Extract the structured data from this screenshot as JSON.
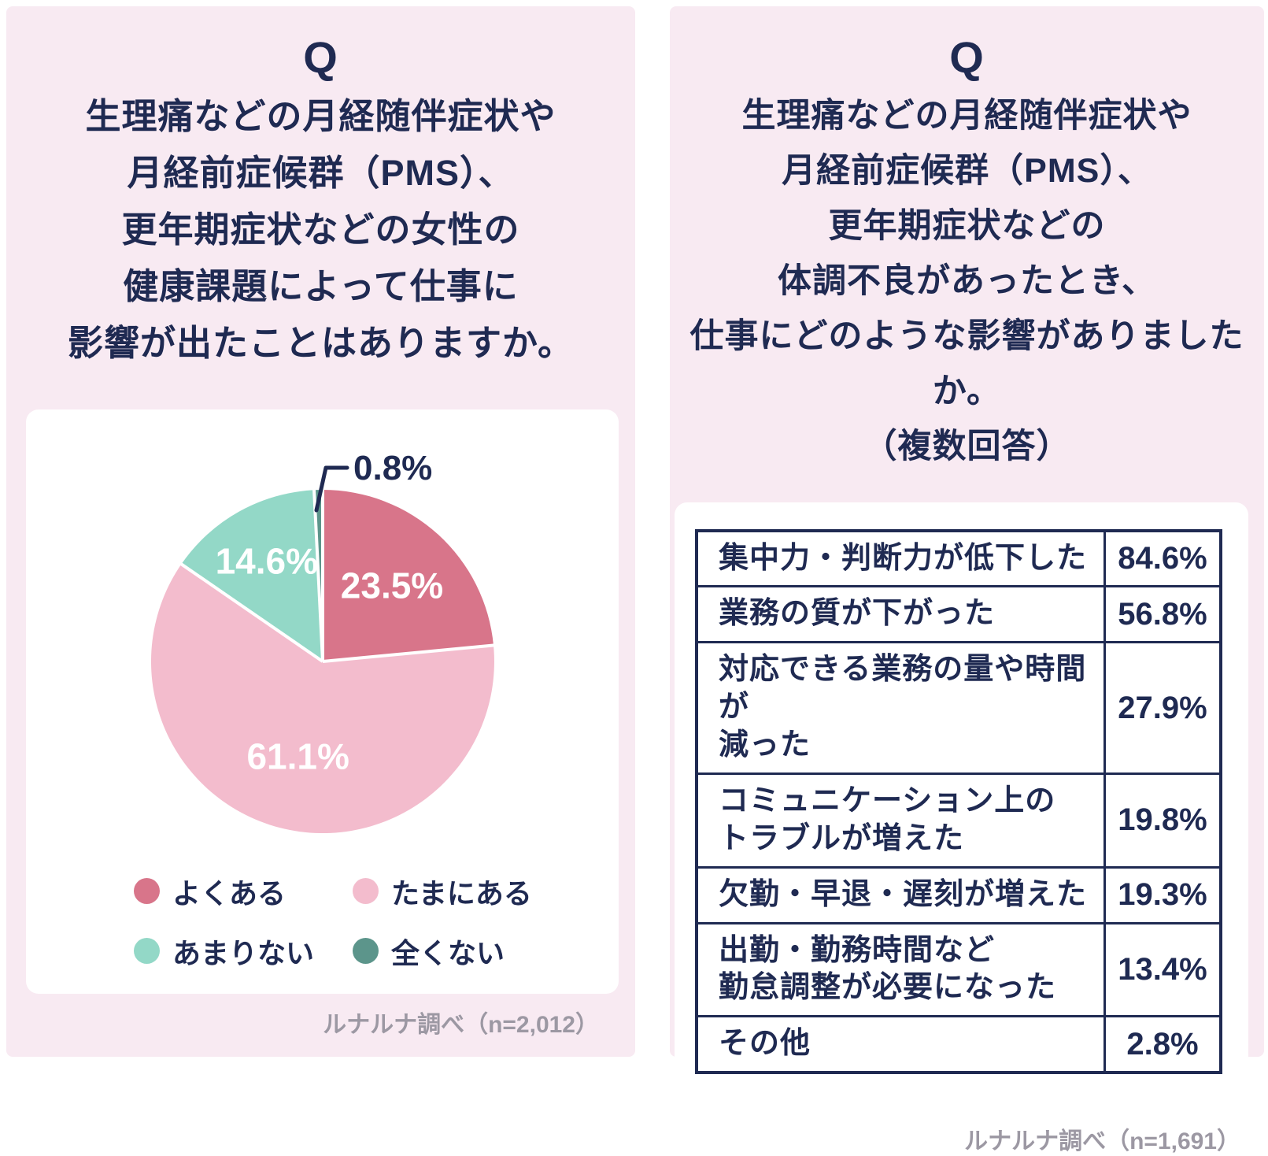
{
  "colors": {
    "panel_bg": "#f8eaf2",
    "card_bg": "#ffffff",
    "navy_text": "#1f2a52",
    "footer_gray": "#9c98a3",
    "rose": "#d8758a",
    "light_pink": "#f3bccd",
    "mint": "#93d8c7",
    "dark_teal": "#5c958b"
  },
  "panels": {
    "left": {
      "q_label": "Q",
      "title_lines": [
        "生理痛などの月経随伴症状や",
        "月経前症候群（PMS）、",
        "更年期症状などの女性の",
        "健康課題によって仕事に",
        "影響が出たことはありますか。"
      ],
      "source": "ルナルナ調べ（n=2,012）"
    },
    "right": {
      "q_label": "Q",
      "title_lines": [
        "生理痛などの月経随伴症状や",
        "月経前症候群（PMS）、",
        "更年期症状などの",
        "体調不良があったとき、",
        "仕事にどのような影響がありましたか。",
        "（複数回答）"
      ],
      "source": "ルナルナ調べ（n=1,691）"
    }
  },
  "chart_data": [
    {
      "type": "pie",
      "title": "生理痛などの月経随伴症状や月経前症候群（PMS）、更年期症状などの女性の健康課題によって仕事に影響が出たことはありますか。",
      "labels": [
        "よくある",
        "たまにある",
        "あまりない",
        "全くない"
      ],
      "values": [
        23.5,
        61.1,
        14.6,
        0.8
      ],
      "display_values": [
        "23.5%",
        "61.1%",
        "14.6%",
        "0.8%"
      ],
      "colors": [
        "#d8758a",
        "#f3bccd",
        "#93d8c7",
        "#5c958b"
      ],
      "start_angle_deg": 0,
      "direction": "clockwise",
      "legend_position": "bottom",
      "source": "ルナルナ調べ（n=2,012）"
    },
    {
      "type": "table",
      "title": "生理痛などの月経随伴症状や月経前症候群（PMS）、更年期症状などの体調不良があったとき、仕事にどのような影響がありましたか。（複数回答）",
      "value_format": "percent",
      "rows": [
        {
          "label_lines": [
            "集中力・判断力が低下した"
          ],
          "value": 84.6
        },
        {
          "label_lines": [
            "業務の質が下がった"
          ],
          "value": 56.8
        },
        {
          "label_lines": [
            "対応できる業務の量や時間が",
            "減った"
          ],
          "value": 27.9
        },
        {
          "label_lines": [
            "コミュニケーション上の",
            "トラブルが増えた"
          ],
          "value": 19.8
        },
        {
          "label_lines": [
            "欠勤・早退・遅刻が増えた"
          ],
          "value": 19.3
        },
        {
          "label_lines": [
            "出勤・勤務時間など",
            "勤怠調整が必要になった"
          ],
          "value": 13.4
        },
        {
          "label_lines": [
            "その他"
          ],
          "value": 2.8
        }
      ],
      "source": "ルナルナ調べ（n=1,691）"
    }
  ]
}
